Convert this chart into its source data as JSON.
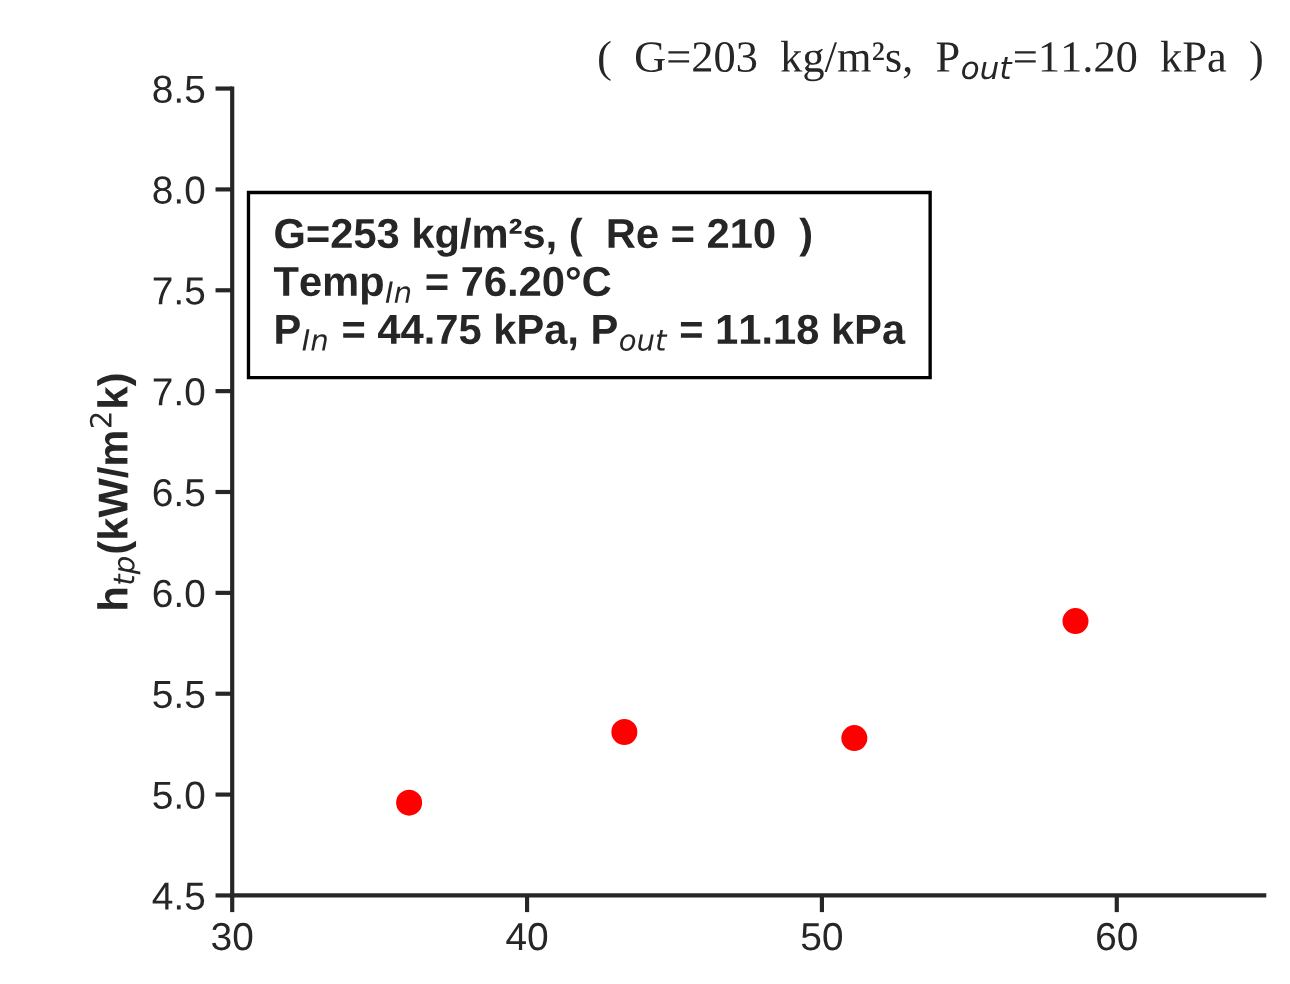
{
  "chart_data": {
    "type": "scatter",
    "title": "(  G=203  kg/m²s,  P$_{out}$=11.20  kPa  )",
    "ylabel": "h$_{tp}$(kW/m$^{2}$k)",
    "annotations": [
      "G=253 kg/m²s, (  Re = 210  )\nTemp$_{In}$ = 76.20°C\nP$_{In}$ = 44.75 kPa, P$_{out}$ = 11.18 kPa"
    ],
    "series": [
      {
        "color": "#ff0000",
        "x": [
          36.0,
          43.3,
          51.1,
          58.6
        ],
        "values": [
          4.96,
          5.31,
          5.28,
          5.86
        ]
      }
    ],
    "marker": "circle",
    "xlim": [
      30,
      65
    ],
    "xticks": [
      30,
      40,
      50,
      60
    ],
    "ylim": [
      4.5,
      8.5
    ],
    "yticks": [
      4.5,
      {
        "value": 5,
        "label": "5.0"
      },
      5.5,
      {
        "value": 6,
        "label": "6.0"
      },
      6.5,
      {
        "value": 7,
        "label": "7.0"
      },
      7.5,
      {
        "value": 8,
        "label": "8.0"
      },
      8.5
    ],
    "grid": false,
    "legend": false
  }
}
